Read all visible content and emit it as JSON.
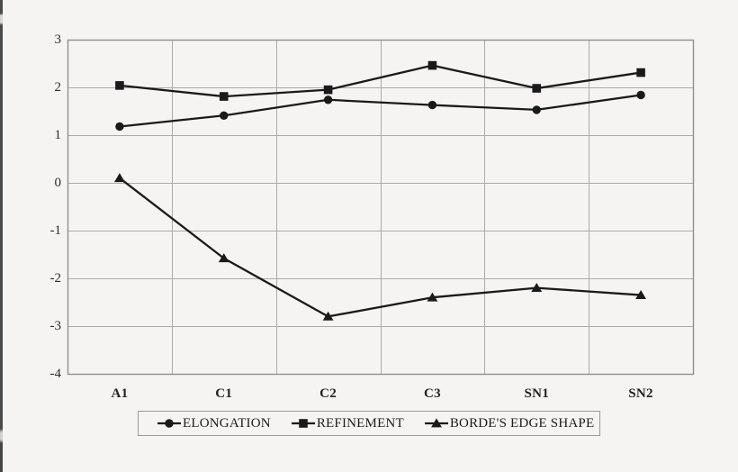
{
  "page": {
    "background_color": "#f5f4f2",
    "series_color": "#1a1a1a",
    "grid_color": "#ababab",
    "border_color": "#8f8f8f",
    "text_color": "#2b2b2b"
  },
  "chart_data": {
    "type": "line",
    "title": "",
    "xlabel": "",
    "ylabel": "",
    "categories": [
      "A1",
      "C1",
      "C2",
      "C3",
      "SN1",
      "SN2"
    ],
    "series": [
      {
        "name": "ELONGATION",
        "marker": "circle",
        "values": [
          1.18,
          1.41,
          1.74,
          1.63,
          1.53,
          1.84
        ]
      },
      {
        "name": "REFINEMENT",
        "marker": "square",
        "values": [
          2.04,
          1.81,
          1.95,
          2.46,
          1.98,
          2.31
        ]
      },
      {
        "name": "BORDE'S EDGE SHAPE",
        "marker": "triangle",
        "values": [
          0.1,
          -1.58,
          -2.8,
          -2.4,
          -2.2,
          -2.35
        ]
      }
    ],
    "ylim": [
      -4,
      3
    ],
    "y_ticks": [
      "3",
      "2",
      "1",
      "0",
      "-1",
      "-2",
      "-3",
      "-4"
    ],
    "y_tick_values": [
      3,
      2,
      1,
      0,
      -1,
      -2,
      -3,
      -4
    ],
    "grid": true,
    "legend_position": "bottom"
  }
}
